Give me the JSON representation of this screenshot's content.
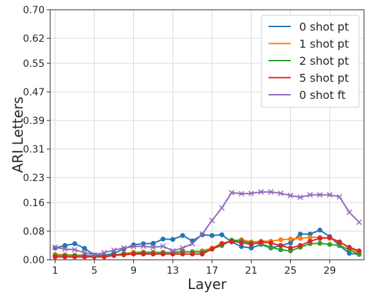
{
  "chart_data": {
    "type": "line",
    "title": "",
    "xlabel": "Layer",
    "ylabel": "ARI Letters",
    "x": [
      1,
      2,
      3,
      4,
      5,
      6,
      7,
      8,
      9,
      10,
      11,
      12,
      13,
      14,
      15,
      16,
      17,
      18,
      19,
      20,
      21,
      22,
      23,
      24,
      25,
      26,
      27,
      28,
      29,
      30,
      31,
      32
    ],
    "xticks": [
      1,
      5,
      9,
      13,
      17,
      21,
      25,
      29
    ],
    "xlim": [
      0.5,
      32.5
    ],
    "yticks": [
      "0.00",
      "0.08",
      "0.16",
      "0.23",
      "0.31",
      "0.39",
      "0.47",
      "0.55",
      "0.62",
      "0.70"
    ],
    "ylim": [
      0,
      0.7
    ],
    "grid": true,
    "legend_position": "top-right",
    "series": [
      {
        "name": "0 shot pt",
        "color": "#1f77b4",
        "marker": "circle",
        "values": [
          0.033,
          0.04,
          0.045,
          0.032,
          0.013,
          0.013,
          0.018,
          0.03,
          0.042,
          0.045,
          0.046,
          0.058,
          0.057,
          0.068,
          0.053,
          0.07,
          0.068,
          0.07,
          0.05,
          0.037,
          0.033,
          0.043,
          0.033,
          0.04,
          0.047,
          0.072,
          0.072,
          0.083,
          0.065,
          0.04,
          0.018,
          0.015
        ]
      },
      {
        "name": "1 shot pt",
        "color": "#ff7f0e",
        "marker": "circle",
        "values": [
          0.015,
          0.014,
          0.013,
          0.013,
          0.01,
          0.011,
          0.013,
          0.018,
          0.021,
          0.022,
          0.021,
          0.021,
          0.02,
          0.021,
          0.023,
          0.025,
          0.033,
          0.046,
          0.053,
          0.056,
          0.05,
          0.052,
          0.052,
          0.056,
          0.058,
          0.06,
          0.063,
          0.063,
          0.06,
          0.05,
          0.033,
          0.02
        ]
      },
      {
        "name": "2 shot pt",
        "color": "#2ca02c",
        "marker": "circle",
        "values": [
          0.012,
          0.012,
          0.012,
          0.012,
          0.01,
          0.011,
          0.013,
          0.016,
          0.018,
          0.02,
          0.02,
          0.02,
          0.021,
          0.023,
          0.022,
          0.022,
          0.03,
          0.04,
          0.055,
          0.053,
          0.047,
          0.045,
          0.035,
          0.028,
          0.025,
          0.035,
          0.045,
          0.046,
          0.043,
          0.04,
          0.028,
          0.015
        ]
      },
      {
        "name": "5 shot pt",
        "color": "#d62728",
        "marker": "circle",
        "values": [
          0.008,
          0.008,
          0.008,
          0.008,
          0.008,
          0.008,
          0.012,
          0.014,
          0.016,
          0.016,
          0.016,
          0.016,
          0.016,
          0.016,
          0.016,
          0.016,
          0.03,
          0.045,
          0.052,
          0.048,
          0.043,
          0.05,
          0.047,
          0.04,
          0.033,
          0.04,
          0.052,
          0.06,
          0.062,
          0.05,
          0.035,
          0.025
        ]
      },
      {
        "name": "0 shot ft",
        "color": "#9467bd",
        "marker": "x",
        "values": [
          0.035,
          0.03,
          0.028,
          0.02,
          0.014,
          0.02,
          0.027,
          0.033,
          0.037,
          0.038,
          0.035,
          0.038,
          0.025,
          0.033,
          0.045,
          0.072,
          0.11,
          0.145,
          0.188,
          0.185,
          0.186,
          0.19,
          0.19,
          0.186,
          0.18,
          0.175,
          0.182,
          0.182,
          0.182,
          0.176,
          0.133,
          0.105
        ]
      }
    ]
  }
}
